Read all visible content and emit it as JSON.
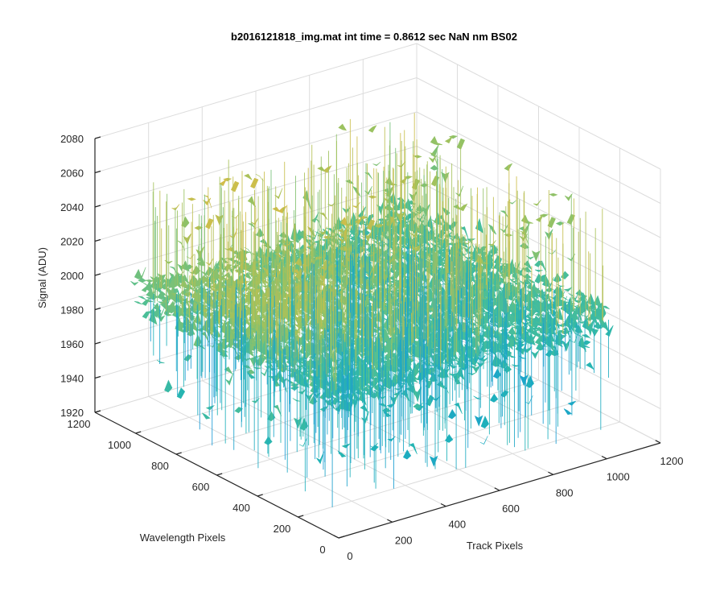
{
  "chart_data": {
    "type": "surface",
    "title": "b2016121818_img.mat int time = 0.8612 sec  NaN nm BS02",
    "xlabel": "Track Pixels",
    "ylabel": "Wavelength Pixels",
    "zlabel": "Signal (ADU)",
    "xlim": [
      0,
      1200
    ],
    "ylim": [
      0,
      1200
    ],
    "zlim": [
      1920,
      2080
    ],
    "xticks": [
      0,
      200,
      400,
      600,
      800,
      1000,
      1200
    ],
    "yticks": [
      0,
      200,
      400,
      600,
      800,
      1000,
      1200
    ],
    "zticks": [
      1920,
      1940,
      1960,
      1980,
      2000,
      2020,
      2040,
      2060,
      2080
    ],
    "data_extent": {
      "x": [
        0,
        1024
      ],
      "y": [
        0,
        1024
      ]
    },
    "z_mean": 2000,
    "z_noise_range": [
      1935,
      2065
    ],
    "colormap": "parula",
    "colors": [
      "#1a9ad6",
      "#1fb3b7",
      "#4fbf95",
      "#9fc25e",
      "#d2bd4a"
    ],
    "grid": true
  }
}
